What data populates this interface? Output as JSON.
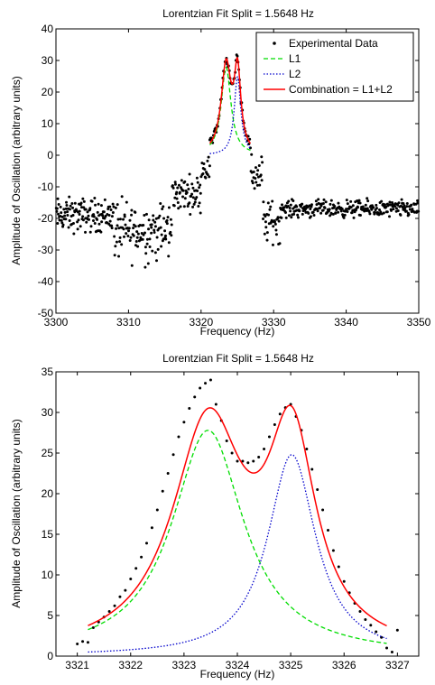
{
  "chart_data": [
    {
      "type": "scatter",
      "title": "Lorentzian Fit     Split = 1.5648 Hz",
      "xlabel": "Frequency (Hz)",
      "ylabel": "Amplitude of Oscillation (arbitrary units)",
      "xlim": [
        3300,
        3350
      ],
      "ylim": [
        -50,
        40
      ],
      "xticks": [
        "3300",
        "3310",
        "3320",
        "3330",
        "3340",
        "3350"
      ],
      "yticks": [
        "-50",
        "-40",
        "-30",
        "-20",
        "-10",
        "0",
        "10",
        "20",
        "30",
        "40"
      ],
      "grid": false,
      "legend_position": "top-right",
      "legend": [
        "Experimental Data",
        "L1",
        "L2",
        "Combination = L1+L2"
      ],
      "fit_range": [
        3321.2,
        3326.8
      ],
      "series": [
        {
          "name": "Experimental Data",
          "kind": "points",
          "color": "#000000",
          "segments": [
            {
              "x0": 3300,
              "x1": 3308,
              "mean": -19,
              "spread": 4,
              "n": 130
            },
            {
              "x0": 3308,
              "x1": 3316,
              "mean": -24,
              "spread": 7,
              "n": 120
            },
            {
              "x0": 3316,
              "x1": 3320,
              "mean": -12,
              "spread": 4,
              "n": 60
            },
            {
              "x0": 3320,
              "x1": 3321.2,
              "mean": -4,
              "spread": 3,
              "n": 16
            },
            {
              "x0": 3326.8,
              "x1": 3328.5,
              "mean": -6,
              "spread": 5,
              "n": 22
            },
            {
              "x0": 3328.5,
              "x1": 3331,
              "mean": -21,
              "spread": 5,
              "n": 35
            },
            {
              "x0": 3331,
              "x1": 3350,
              "mean": -17,
              "spread": 2,
              "n": 260
            }
          ]
        },
        {
          "name": "L1",
          "kind": "lorentzian",
          "color": "#00dd00",
          "dash": "dashed",
          "x0": 3323.45,
          "amplitude": 27.8,
          "hwhm": 0.82,
          "offset": 0
        },
        {
          "name": "L2",
          "kind": "lorentzian",
          "color": "#0000cc",
          "dash": "dotted",
          "x0": 3325.02,
          "amplitude": 24.8,
          "hwhm": 0.55,
          "offset": 0
        },
        {
          "name": "Combination = L1+L2",
          "kind": "sum",
          "color": "#ff0000",
          "dash": "solid"
        }
      ]
    },
    {
      "type": "scatter",
      "title": "Lorentzian Fit     Split = 1.5648 Hz",
      "xlabel": "Frequency (Hz)",
      "ylabel": "Amplitude of Oscillation (arbitrary units)",
      "xlim": [
        3320.6,
        3327.4
      ],
      "ylim": [
        0,
        35
      ],
      "xticks": [
        "3321",
        "3322",
        "3323",
        "3324",
        "3325",
        "3326",
        "3327"
      ],
      "yticks": [
        "0",
        "5",
        "10",
        "15",
        "20",
        "25",
        "30",
        "35"
      ],
      "grid": false,
      "fit_range": [
        3321.2,
        3326.8
      ],
      "series": [
        {
          "name": "Experimental Data",
          "kind": "points",
          "color": "#000000",
          "x": [
            3321.0,
            3321.1,
            3321.2,
            3321.3,
            3321.4,
            3321.5,
            3321.6,
            3321.7,
            3321.8,
            3321.9,
            3322.0,
            3322.1,
            3322.2,
            3322.3,
            3322.4,
            3322.5,
            3322.6,
            3322.7,
            3322.8,
            3322.9,
            3323.0,
            3323.1,
            3323.2,
            3323.3,
            3323.4,
            3323.5,
            3323.6,
            3323.7,
            3323.8,
            3323.9,
            3324.0,
            3324.1,
            3324.2,
            3324.3,
            3324.4,
            3324.5,
            3324.6,
            3324.7,
            3324.8,
            3324.9,
            3325.0,
            3325.1,
            3325.2,
            3325.3,
            3325.4,
            3325.5,
            3325.6,
            3325.7,
            3325.8,
            3325.9,
            3326.0,
            3326.1,
            3326.2,
            3326.3,
            3326.4,
            3326.5,
            3326.6,
            3326.7,
            3326.8,
            3326.9,
            3327.0
          ],
          "y": [
            1.5,
            1.8,
            1.7,
            3.5,
            4.2,
            4.8,
            5.5,
            6.2,
            7.3,
            8.1,
            9.5,
            10.8,
            12.2,
            13.9,
            15.8,
            18.0,
            20.3,
            22.5,
            24.8,
            27.0,
            28.8,
            30.5,
            31.9,
            33.0,
            33.6,
            34.0,
            31.0,
            29.0,
            26.5,
            25.0,
            24.0,
            24.0,
            23.8,
            24.0,
            24.5,
            25.5,
            27.0,
            28.5,
            29.8,
            30.6,
            31.0,
            29.5,
            27.8,
            25.5,
            23.0,
            20.5,
            18.0,
            15.5,
            13.0,
            11.0,
            9.2,
            7.8,
            6.5,
            5.5,
            4.5,
            3.8,
            3.0,
            2.3,
            1.0,
            0.5,
            3.2
          ]
        },
        {
          "name": "L1",
          "kind": "lorentzian",
          "color": "#00dd00",
          "dash": "dashed",
          "x0": 3323.45,
          "amplitude": 27.8,
          "hwhm": 0.82,
          "offset": 0
        },
        {
          "name": "L2",
          "kind": "lorentzian",
          "color": "#0000cc",
          "dash": "dotted",
          "x0": 3325.02,
          "amplitude": 24.8,
          "hwhm": 0.55,
          "offset": 0
        },
        {
          "name": "Combination = L1+L2",
          "kind": "sum",
          "color": "#ff0000",
          "dash": "solid"
        }
      ]
    }
  ]
}
